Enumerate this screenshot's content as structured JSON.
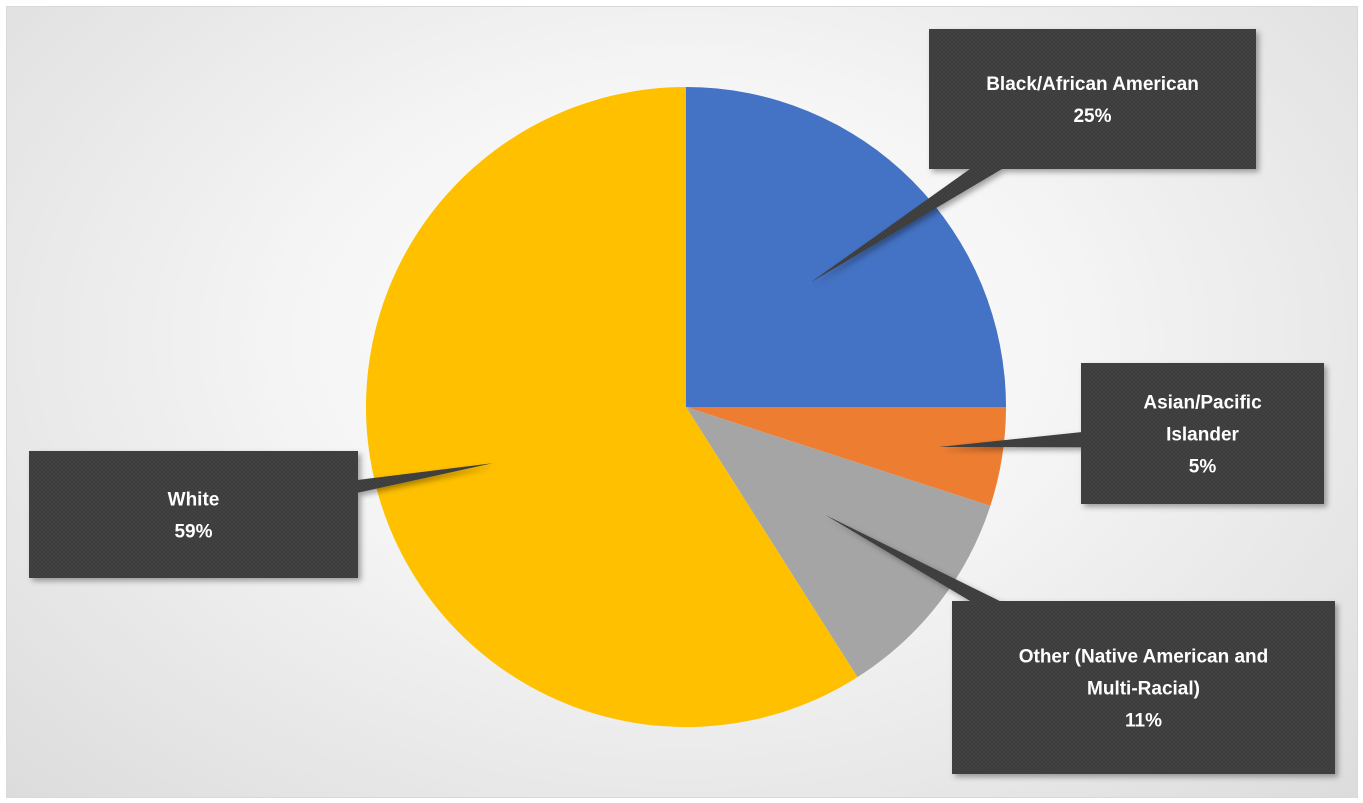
{
  "chart_data": {
    "type": "pie",
    "title": "",
    "start_angle_deg": 0,
    "direction": "clockwise",
    "slices": [
      {
        "label_lines": [
          "Black/African American"
        ],
        "percent_label": "25%",
        "value": 25,
        "color": "#4472c4"
      },
      {
        "label_lines": [
          "Asian/Pacific",
          "Islander"
        ],
        "percent_label": "5%",
        "value": 5,
        "color": "#ed7d31"
      },
      {
        "label_lines": [
          "Other (Native American and",
          "Multi-Racial)"
        ],
        "percent_label": "11%",
        "value": 11,
        "color": "#a5a5a5"
      },
      {
        "label_lines": [
          "White"
        ],
        "percent_label": "59%",
        "value": 59,
        "color": "#ffc000"
      }
    ],
    "legend": "none",
    "data_labels": "callouts"
  },
  "style": {
    "callout_fill": "#3d3d3d",
    "callout_text_color": "#ffffff"
  }
}
